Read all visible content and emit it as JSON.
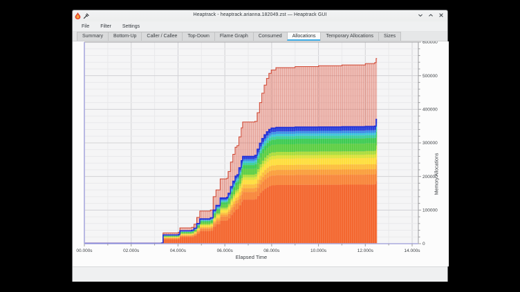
{
  "window": {
    "title": "Heaptrack - heaptrack.arianna.182049.zst — Heaptrack GUI",
    "icons": [
      "heaptrack-app-icon",
      "pin-icon"
    ],
    "controls": [
      "minimize",
      "maximize",
      "close"
    ]
  },
  "menu": {
    "items": [
      "File",
      "Filter",
      "Settings"
    ]
  },
  "tabs": {
    "items": [
      "Summary",
      "Bottom-Up",
      "Caller / Callee",
      "Top-Down",
      "Flame Graph",
      "Consumed",
      "Allocations",
      "Temporary Allocations",
      "Sizes"
    ],
    "active_index": 6
  },
  "chart_data": {
    "type": "area",
    "title": "",
    "xlabel": "Elapsed Time",
    "ylabel": "Memory Allocations",
    "xlim": [
      0,
      14
    ],
    "ylim": [
      0,
      600000
    ],
    "grid": "on",
    "legend": "none",
    "x_ticks": {
      "values": [
        0,
        2,
        4,
        6,
        8,
        10,
        12,
        14
      ],
      "labels": [
        "00.000s",
        "02.000s",
        "04.000s",
        "06.000s",
        "08.000s",
        "10.000s",
        "12.000s",
        "14.000s"
      ],
      "minor_step": 1
    },
    "y_ticks": {
      "values": [
        0,
        100000,
        200000,
        300000,
        400000,
        500000,
        600000
      ],
      "labels": [
        "0",
        "100000",
        "200000",
        "300000",
        "400000",
        "500000",
        "600000"
      ],
      "minor_step": 20000
    },
    "colors": {
      "plot_bg": "#f5f5f6",
      "grid_minor": "#e9e9eb",
      "grid_major": "#d2d2d5",
      "axis_left_bottom": "#a9a9de",
      "axis_right_top": "#9b9b9e",
      "tick_text": "#3a3e42"
    },
    "series": [
      {
        "name": "total-allocations",
        "style": "outline-area",
        "fill": "rgba(226,84,62,0.34)",
        "stroke": "#d0432e",
        "points": [
          [
            0,
            1500
          ],
          [
            3.3,
            2500
          ],
          [
            3.36,
            32000
          ],
          [
            4.02,
            34000
          ],
          [
            4.08,
            47000
          ],
          [
            4.58,
            49000
          ],
          [
            4.68,
            58000
          ],
          [
            4.8,
            78000
          ],
          [
            4.93,
            97000
          ],
          [
            5.38,
            100000
          ],
          [
            5.5,
            140000
          ],
          [
            5.62,
            160000
          ],
          [
            5.8,
            193000
          ],
          [
            6.08,
            195000
          ],
          [
            6.14,
            215000
          ],
          [
            6.24,
            243000
          ],
          [
            6.34,
            266000
          ],
          [
            6.44,
            287000
          ],
          [
            6.52,
            292000
          ],
          [
            6.6,
            318000
          ],
          [
            6.7,
            345000
          ],
          [
            6.76,
            362000
          ],
          [
            7.28,
            364000
          ],
          [
            7.38,
            390000
          ],
          [
            7.48,
            420000
          ],
          [
            7.58,
            448000
          ],
          [
            7.68,
            472000
          ],
          [
            7.78,
            492000
          ],
          [
            7.88,
            507000
          ],
          [
            7.98,
            517000
          ],
          [
            8.18,
            524000
          ],
          [
            9.0,
            527000
          ],
          [
            10.0,
            529500
          ],
          [
            11.0,
            532000
          ],
          [
            12.0,
            536000
          ],
          [
            12.4,
            539000
          ],
          [
            12.46,
            551000
          ],
          [
            12.5,
            551000
          ]
        ]
      },
      {
        "name": "allocation-site-stack",
        "style": "stacked-bands",
        "stroke": "#2230d8",
        "points": [
          [
            0,
            1000
          ],
          [
            3.3,
            1800
          ],
          [
            3.36,
            26000
          ],
          [
            4.02,
            27500
          ],
          [
            4.08,
            38500
          ],
          [
            4.58,
            40000
          ],
          [
            4.68,
            46000
          ],
          [
            4.8,
            60000
          ],
          [
            4.93,
            74000
          ],
          [
            5.38,
            77000
          ],
          [
            5.5,
            100000
          ],
          [
            5.62,
            114000
          ],
          [
            5.8,
            136000
          ],
          [
            6.08,
            138000
          ],
          [
            6.14,
            150000
          ],
          [
            6.24,
            170000
          ],
          [
            6.34,
            186000
          ],
          [
            6.44,
            201000
          ],
          [
            6.52,
            205000
          ],
          [
            6.6,
            226000
          ],
          [
            6.7,
            247000
          ],
          [
            6.76,
            260000
          ],
          [
            7.28,
            263000
          ],
          [
            7.38,
            281000
          ],
          [
            7.48,
            299000
          ],
          [
            7.58,
            313000
          ],
          [
            7.68,
            324000
          ],
          [
            7.78,
            333000
          ],
          [
            7.88,
            340000
          ],
          [
            7.98,
            344000
          ],
          [
            8.18,
            346000
          ],
          [
            9.0,
            347000
          ],
          [
            10.0,
            347500
          ],
          [
            11.0,
            348000
          ],
          [
            12.0,
            349000
          ],
          [
            12.4,
            350000
          ],
          [
            12.46,
            370000
          ],
          [
            12.5,
            370000
          ]
        ],
        "bands": [
          {
            "color": "#f4672f",
            "frac": 0.505
          },
          {
            "color": "#f8863b",
            "frac": 0.085
          },
          {
            "color": "#fa9f3c",
            "frac": 0.045
          },
          {
            "color": "#fcbe3c",
            "frac": 0.042
          },
          {
            "color": "#fede3d",
            "frac": 0.055
          },
          {
            "color": "#dbe43a",
            "frac": 0.028
          },
          {
            "color": "#abdd3c",
            "frac": 0.03
          },
          {
            "color": "#5ecf44",
            "frac": 0.065
          },
          {
            "color": "#3ecb53",
            "frac": 0.045
          },
          {
            "color": "#3bcf9e",
            "frac": 0.025
          },
          {
            "color": "#3cc4dd",
            "frac": 0.02
          },
          {
            "color": "#3b8ee6",
            "frac": 0.022
          },
          {
            "color": "#2c41da",
            "frac": 0.033
          }
        ]
      }
    ]
  }
}
